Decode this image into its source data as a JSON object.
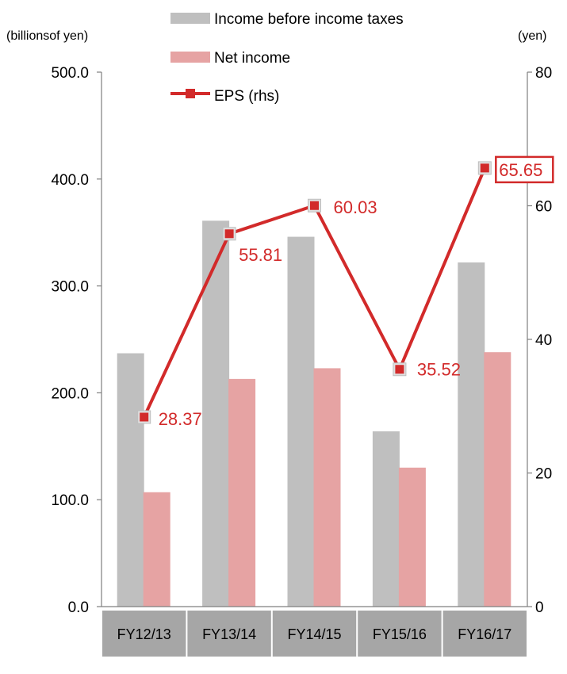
{
  "chart_data": {
    "type": "bar",
    "categories": [
      "FY12/13",
      "FY13/14",
      "FY14/15",
      "FY15/16",
      "FY16/17"
    ],
    "series": [
      {
        "name": "Income before income taxes",
        "type": "bar",
        "axis": "left",
        "color": "#bfbfbf",
        "values": [
          237,
          361,
          346,
          164,
          322
        ]
      },
      {
        "name": "Net income",
        "type": "bar",
        "axis": "left",
        "color": "#e6a3a3",
        "values": [
          107,
          213,
          223,
          130,
          238
        ]
      },
      {
        "name": "EPS (rhs)",
        "type": "line",
        "axis": "right",
        "color": "#d22a2a",
        "values": [
          28.37,
          55.81,
          60.03,
          35.52,
          65.65
        ],
        "labels": [
          "28.37",
          "55.81",
          "60.03",
          "35.52",
          "65.65"
        ],
        "highlighted_index": 4
      }
    ],
    "yleft": {
      "label": "(billionsof yen)",
      "ylim": [
        0,
        500
      ],
      "ticks": [
        "0.0",
        "100.0",
        "200.0",
        "300.0",
        "400.0",
        "500.0"
      ]
    },
    "yright": {
      "label": "(yen)",
      "ylim": [
        0,
        80
      ],
      "ticks": [
        "0",
        "20",
        "40",
        "60",
        "80"
      ]
    },
    "legend": {
      "position": "top"
    },
    "grid": false
  }
}
